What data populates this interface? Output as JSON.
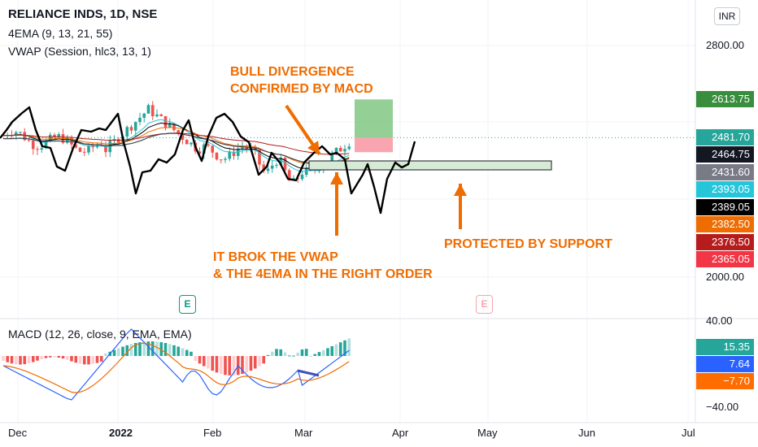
{
  "legend": {
    "title": "RELIANCE INDS, 1D, NSE",
    "ema": "4EMA (9, 13, 21, 55)",
    "vwap": "VWAP (Session, hlc3, 13, 1)",
    "macd": "MACD (12, 26, close, 9, EMA, EMA)"
  },
  "currency": "INR",
  "price_axis": [
    {
      "value": 2800,
      "label": "2800.00"
    },
    {
      "value": 2000,
      "label": "2000.00"
    }
  ],
  "price_labels": [
    {
      "label": "2613.75",
      "value": 2613.75,
      "color": "#388e3c"
    },
    {
      "label": "2481.70",
      "value": 2481.7,
      "color": "#26a69a"
    },
    {
      "label": "2464.75",
      "value": 2464.75,
      "color": "#131722"
    },
    {
      "label": "2431.60",
      "value": 2431.6,
      "color": "#787b86"
    },
    {
      "label": "2393.05",
      "value": 2393.05,
      "color": "#26c6da"
    },
    {
      "label": "2389.05",
      "value": 2389.05,
      "color": "#000000"
    },
    {
      "label": "2382.50",
      "value": 2382.5,
      "color": "#ef6c00"
    },
    {
      "label": "2376.50",
      "value": 2376.5,
      "color": "#b71c1c"
    },
    {
      "label": "2365.05",
      "value": 2365.05,
      "color": "#f23645"
    }
  ],
  "macd_axis": [
    {
      "value": 40,
      "label": "40.00"
    },
    {
      "value": -40,
      "label": "−40.00"
    }
  ],
  "macd_labels": [
    {
      "label": "15.35",
      "value": 15.35,
      "color": "#26a69a"
    },
    {
      "label": "7.64",
      "value": 7.64,
      "color": "#2962ff"
    },
    {
      "label": "−7.70",
      "value": -7.7,
      "color": "#ff6d00"
    }
  ],
  "time_axis": [
    {
      "label": "Dec",
      "bold": false
    },
    {
      "label": "2022",
      "bold": true
    },
    {
      "label": "Feb",
      "bold": false
    },
    {
      "label": "Mar",
      "bold": false
    },
    {
      "label": "Apr",
      "bold": false
    },
    {
      "label": "May",
      "bold": false
    },
    {
      "label": "Jun",
      "bold": false
    },
    {
      "label": "Jul",
      "bold": false
    }
  ],
  "earnings_markers": [
    {
      "label": "E",
      "color": "#089981"
    },
    {
      "label": "E",
      "color": "#f7a5a9"
    }
  ],
  "annotations": {
    "bull_line1": "BULL DIVERGENCE",
    "bull_line2": "CONFIRMED BY MACD",
    "vwap_line1": "IT BROK THE VWAP",
    "vwap_line2": "& THE 4EMA  IN THE RIGHT ORDER",
    "support": "PROTECTED BY SUPPORT"
  },
  "position": {
    "target": 2613.75,
    "entry": 2481.7,
    "stop": 2431.6
  },
  "colors": {
    "up": "#26a69a",
    "down": "#ef5350",
    "annotation": "#ef6c00",
    "profit_zone": "#81c784",
    "loss_zone": "#f8a5b0",
    "support_zone": "#d7ead6"
  }
}
